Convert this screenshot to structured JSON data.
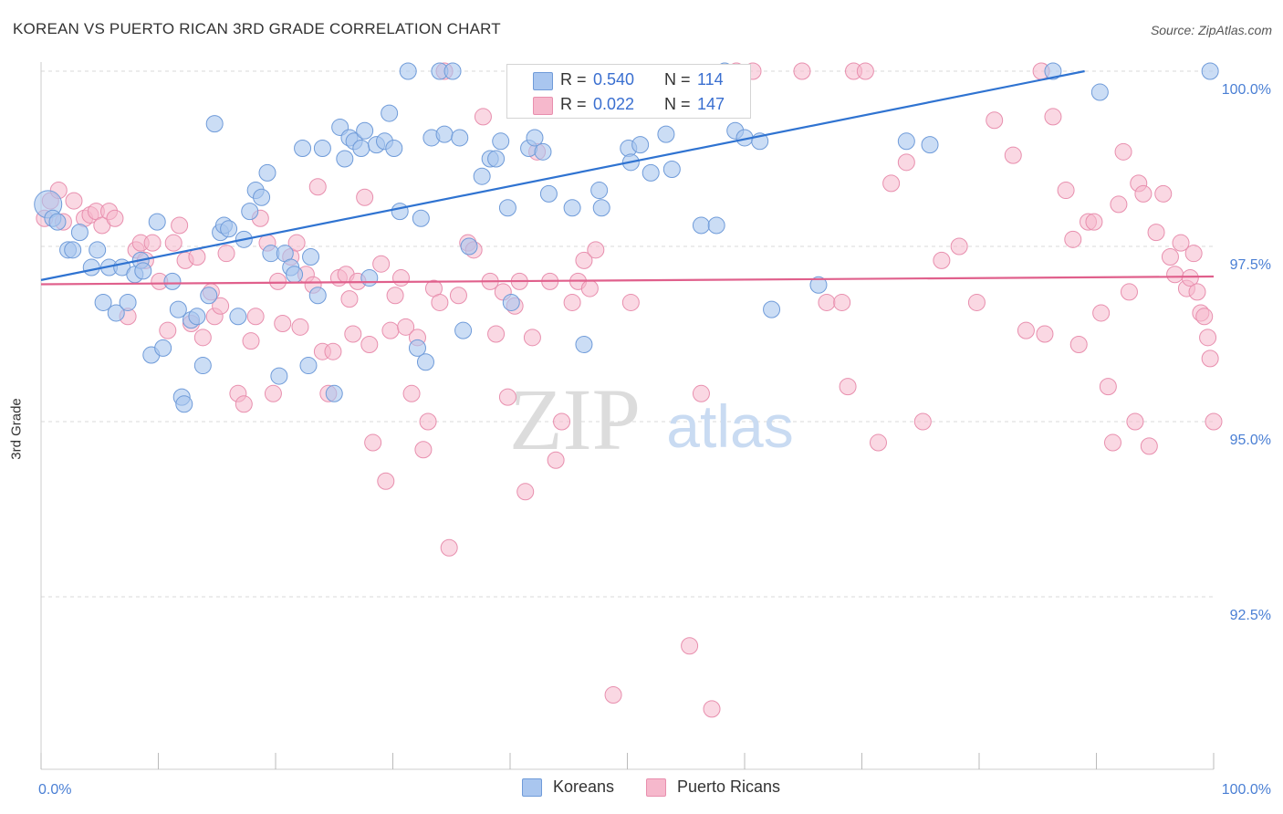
{
  "title": "KOREAN VS PUERTO RICAN 3RD GRADE CORRELATION CHART",
  "source": "Source: ZipAtlas.com",
  "watermark": {
    "zip": "ZIP",
    "atlas": "atlas"
  },
  "colors": {
    "korean_fill": "#a9c6ef",
    "korean_stroke": "#6f9bd9",
    "korean_line": "#2f73d1",
    "pr_fill": "#f6b8cc",
    "pr_stroke": "#e88fae",
    "pr_line": "#e0608c",
    "grid": "#d9d9d9",
    "axis_label": "#4a7fd4"
  },
  "legend": {
    "korean": {
      "r_label": "R =",
      "r_value": "0.540",
      "n_label": "N =",
      "n_value": "114"
    },
    "pr": {
      "r_label": "R =",
      "r_value": "0.022",
      "n_label": "N =",
      "n_value": "147"
    }
  },
  "bottom_legend": [
    "Koreans",
    "Puerto Ricans"
  ],
  "chart_data": {
    "type": "scatter",
    "title": "KOREAN VS PUERTO RICAN 3RD GRADE CORRELATION CHART",
    "xlabel": "",
    "ylabel": "3rd Grade",
    "xlim": [
      0,
      100
    ],
    "ylim": [
      90.0,
      100.3
    ],
    "x_tick_labels": [
      "0.0%",
      "100.0%"
    ],
    "y_ticks": [
      100.0,
      97.5,
      95.0,
      92.5
    ],
    "y_tick_labels": [
      "100.0%",
      "97.5%",
      "95.0%",
      "92.5%"
    ],
    "grid": true,
    "legend_position": "top-center",
    "series": [
      {
        "name": "Koreans",
        "r": 0.54,
        "n": 114,
        "trend": {
          "x": [
            0,
            89
          ],
          "y": [
            97.02,
            100.0
          ]
        },
        "points": [
          [
            0.6,
            98.1
          ],
          [
            1.0,
            97.9
          ],
          [
            1.4,
            97.85
          ],
          [
            2.3,
            97.45
          ],
          [
            2.7,
            97.45
          ],
          [
            3.3,
            97.7
          ],
          [
            4.3,
            97.2
          ],
          [
            4.8,
            97.45
          ],
          [
            5.3,
            96.7
          ],
          [
            5.8,
            97.2
          ],
          [
            6.4,
            96.55
          ],
          [
            6.9,
            97.2
          ],
          [
            7.4,
            96.7
          ],
          [
            8.0,
            97.1
          ],
          [
            8.5,
            97.3
          ],
          [
            8.7,
            97.15
          ],
          [
            9.4,
            95.95
          ],
          [
            9.9,
            97.85
          ],
          [
            10.4,
            96.05
          ],
          [
            11.2,
            97.0
          ],
          [
            11.7,
            96.6
          ],
          [
            12.0,
            95.35
          ],
          [
            12.2,
            95.25
          ],
          [
            12.8,
            96.45
          ],
          [
            13.3,
            96.5
          ],
          [
            13.8,
            95.8
          ],
          [
            14.3,
            96.8
          ],
          [
            14.8,
            99.25
          ],
          [
            15.3,
            97.7
          ],
          [
            15.6,
            97.8
          ],
          [
            16.0,
            97.75
          ],
          [
            16.8,
            96.5
          ],
          [
            17.3,
            97.6
          ],
          [
            17.8,
            98.0
          ],
          [
            18.3,
            98.3
          ],
          [
            18.8,
            98.2
          ],
          [
            19.3,
            98.55
          ],
          [
            19.6,
            97.4
          ],
          [
            20.3,
            95.65
          ],
          [
            20.8,
            97.4
          ],
          [
            21.3,
            97.2
          ],
          [
            21.6,
            97.1
          ],
          [
            22.3,
            98.9
          ],
          [
            22.8,
            95.8
          ],
          [
            23.0,
            97.35
          ],
          [
            23.6,
            96.8
          ],
          [
            24.0,
            98.9
          ],
          [
            25.0,
            95.4
          ],
          [
            25.5,
            99.2
          ],
          [
            25.9,
            98.75
          ],
          [
            26.3,
            99.05
          ],
          [
            26.7,
            99.0
          ],
          [
            27.3,
            98.9
          ],
          [
            27.6,
            99.15
          ],
          [
            28.0,
            97.05
          ],
          [
            28.6,
            98.95
          ],
          [
            29.3,
            99.0
          ],
          [
            29.7,
            99.4
          ],
          [
            30.1,
            98.9
          ],
          [
            30.6,
            98.0
          ],
          [
            31.3,
            100.0
          ],
          [
            32.1,
            96.05
          ],
          [
            32.4,
            97.9
          ],
          [
            32.8,
            95.85
          ],
          [
            33.3,
            99.05
          ],
          [
            34.0,
            100.0
          ],
          [
            34.4,
            99.1
          ],
          [
            35.1,
            100.0
          ],
          [
            35.7,
            99.05
          ],
          [
            36.0,
            96.3
          ],
          [
            36.5,
            97.5
          ],
          [
            37.6,
            98.5
          ],
          [
            38.3,
            98.75
          ],
          [
            38.8,
            98.75
          ],
          [
            39.2,
            99.0
          ],
          [
            39.8,
            98.05
          ],
          [
            40.1,
            96.7
          ],
          [
            41.6,
            98.9
          ],
          [
            42.1,
            99.05
          ],
          [
            42.8,
            98.85
          ],
          [
            43.3,
            98.25
          ],
          [
            45.3,
            98.05
          ],
          [
            46.3,
            96.1
          ],
          [
            47.6,
            98.3
          ],
          [
            47.8,
            98.05
          ],
          [
            50.1,
            98.9
          ],
          [
            50.3,
            98.7
          ],
          [
            51.1,
            98.95
          ],
          [
            52.0,
            98.55
          ],
          [
            53.3,
            99.1
          ],
          [
            53.8,
            98.6
          ],
          [
            56.3,
            97.8
          ],
          [
            57.6,
            97.8
          ],
          [
            58.3,
            100.0
          ],
          [
            59.2,
            99.15
          ],
          [
            60.0,
            99.05
          ],
          [
            61.3,
            99.0
          ],
          [
            62.3,
            96.6
          ],
          [
            66.3,
            96.95
          ],
          [
            73.8,
            99.0
          ],
          [
            75.8,
            98.95
          ],
          [
            86.3,
            100.0
          ],
          [
            90.3,
            99.7
          ],
          [
            99.7,
            100.0
          ]
        ]
      },
      {
        "name": "Puerto Ricans",
        "r": 0.022,
        "n": 147,
        "trend": {
          "x": [
            0,
            100
          ],
          "y": [
            96.96,
            97.07
          ]
        },
        "points": [
          [
            0.3,
            97.9
          ],
          [
            0.8,
            98.15
          ],
          [
            1.5,
            98.3
          ],
          [
            1.9,
            97.85
          ],
          [
            2.8,
            98.15
          ],
          [
            3.7,
            97.9
          ],
          [
            4.2,
            97.95
          ],
          [
            4.7,
            98.0
          ],
          [
            5.2,
            97.8
          ],
          [
            5.8,
            98.0
          ],
          [
            6.3,
            97.9
          ],
          [
            7.4,
            96.5
          ],
          [
            8.1,
            97.45
          ],
          [
            8.5,
            97.55
          ],
          [
            8.9,
            97.3
          ],
          [
            9.5,
            97.55
          ],
          [
            10.1,
            97.0
          ],
          [
            10.8,
            96.3
          ],
          [
            11.3,
            97.55
          ],
          [
            11.8,
            97.8
          ],
          [
            12.3,
            97.3
          ],
          [
            12.8,
            96.4
          ],
          [
            13.3,
            97.35
          ],
          [
            13.8,
            96.2
          ],
          [
            14.5,
            96.85
          ],
          [
            14.8,
            96.5
          ],
          [
            15.3,
            96.65
          ],
          [
            15.8,
            97.4
          ],
          [
            16.8,
            95.4
          ],
          [
            17.3,
            95.25
          ],
          [
            17.9,
            96.15
          ],
          [
            18.3,
            96.5
          ],
          [
            18.7,
            97.9
          ],
          [
            19.3,
            97.55
          ],
          [
            19.8,
            95.4
          ],
          [
            20.2,
            97.0
          ],
          [
            20.6,
            96.4
          ],
          [
            21.3,
            97.35
          ],
          [
            21.8,
            97.55
          ],
          [
            22.1,
            96.35
          ],
          [
            22.6,
            97.1
          ],
          [
            23.2,
            96.95
          ],
          [
            23.6,
            98.35
          ],
          [
            24.0,
            96.0
          ],
          [
            24.5,
            95.4
          ],
          [
            24.9,
            96.0
          ],
          [
            25.4,
            97.05
          ],
          [
            26.0,
            97.1
          ],
          [
            26.3,
            96.75
          ],
          [
            26.6,
            96.25
          ],
          [
            27.0,
            97.0
          ],
          [
            27.6,
            98.2
          ],
          [
            28.0,
            96.1
          ],
          [
            28.3,
            94.7
          ],
          [
            29.0,
            97.25
          ],
          [
            29.4,
            94.15
          ],
          [
            29.8,
            96.3
          ],
          [
            30.2,
            96.8
          ],
          [
            30.7,
            97.05
          ],
          [
            31.1,
            96.35
          ],
          [
            31.6,
            95.4
          ],
          [
            32.1,
            96.2
          ],
          [
            32.6,
            94.6
          ],
          [
            33.0,
            95.0
          ],
          [
            33.5,
            96.9
          ],
          [
            34.0,
            96.7
          ],
          [
            34.4,
            100.0
          ],
          [
            34.8,
            93.2
          ],
          [
            35.6,
            96.8
          ],
          [
            36.4,
            97.55
          ],
          [
            36.9,
            97.45
          ],
          [
            37.7,
            99.35
          ],
          [
            38.3,
            97.0
          ],
          [
            38.8,
            96.25
          ],
          [
            39.4,
            96.85
          ],
          [
            39.8,
            95.35
          ],
          [
            40.4,
            96.65
          ],
          [
            40.8,
            97.0
          ],
          [
            41.3,
            94.0
          ],
          [
            41.9,
            96.2
          ],
          [
            42.3,
            98.85
          ],
          [
            43.4,
            97.0
          ],
          [
            43.9,
            94.45
          ],
          [
            44.4,
            95.0
          ],
          [
            45.3,
            96.7
          ],
          [
            45.8,
            97.0
          ],
          [
            46.3,
            97.3
          ],
          [
            46.8,
            96.9
          ],
          [
            47.3,
            97.45
          ],
          [
            48.8,
            91.1
          ],
          [
            50.3,
            96.7
          ],
          [
            55.3,
            91.8
          ],
          [
            56.3,
            95.4
          ],
          [
            57.2,
            90.9
          ],
          [
            59.3,
            100.0
          ],
          [
            60.7,
            100.0
          ],
          [
            64.9,
            100.0
          ],
          [
            67.0,
            96.7
          ],
          [
            68.3,
            96.7
          ],
          [
            68.8,
            95.5
          ],
          [
            69.3,
            100.0
          ],
          [
            70.3,
            100.0
          ],
          [
            71.4,
            94.7
          ],
          [
            72.5,
            98.4
          ],
          [
            73.8,
            98.7
          ],
          [
            75.2,
            95.0
          ],
          [
            76.8,
            97.3
          ],
          [
            78.3,
            97.5
          ],
          [
            79.8,
            96.7
          ],
          [
            81.3,
            99.3
          ],
          [
            82.9,
            98.8
          ],
          [
            84.0,
            96.3
          ],
          [
            85.3,
            100.0
          ],
          [
            85.6,
            96.25
          ],
          [
            86.3,
            99.35
          ],
          [
            87.4,
            98.3
          ],
          [
            88.0,
            97.6
          ],
          [
            88.5,
            96.1
          ],
          [
            89.3,
            97.85
          ],
          [
            89.8,
            97.85
          ],
          [
            90.4,
            96.55
          ],
          [
            91.0,
            95.5
          ],
          [
            91.4,
            94.7
          ],
          [
            91.9,
            98.1
          ],
          [
            92.3,
            98.85
          ],
          [
            92.8,
            96.85
          ],
          [
            93.3,
            95.0
          ],
          [
            93.6,
            98.4
          ],
          [
            94.0,
            98.25
          ],
          [
            94.5,
            94.65
          ],
          [
            95.1,
            97.7
          ],
          [
            95.7,
            98.25
          ],
          [
            96.3,
            97.35
          ],
          [
            96.7,
            97.1
          ],
          [
            97.2,
            97.55
          ],
          [
            97.7,
            96.9
          ],
          [
            98.0,
            97.05
          ],
          [
            98.3,
            97.4
          ],
          [
            98.6,
            96.85
          ],
          [
            98.9,
            96.55
          ],
          [
            99.2,
            96.5
          ],
          [
            99.5,
            96.2
          ],
          [
            99.7,
            95.9
          ],
          [
            100.0,
            95.0
          ]
        ]
      }
    ]
  }
}
